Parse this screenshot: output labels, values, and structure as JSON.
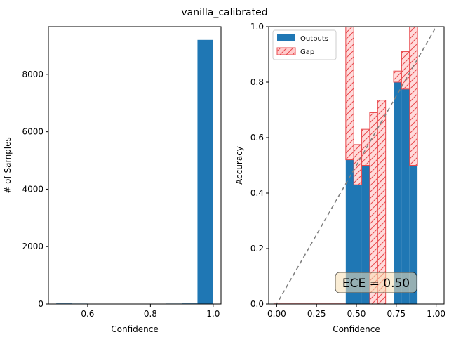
{
  "figure": {
    "suptitle": "vanilla_calibrated"
  },
  "chart_data": [
    {
      "type": "bar",
      "name": "confidence-histogram",
      "xlabel": "Confidence",
      "ylabel": "# of Samples",
      "xlim": [
        0.475,
        1.025
      ],
      "ylim": [
        0,
        9660
      ],
      "xticks": [
        0.6,
        0.8,
        1.0
      ],
      "xtick_labels": [
        "0.6",
        "0.8",
        "1.0"
      ],
      "yticks": [
        0,
        2000,
        4000,
        6000,
        8000
      ],
      "ytick_labels": [
        "0",
        "2000",
        "4000",
        "6000",
        "8000"
      ],
      "bar_color": "#1f77b4",
      "bins": [
        {
          "x0": 0.5,
          "x1": 0.55,
          "count": 20
        },
        {
          "x0": 0.55,
          "x1": 0.6,
          "count": 15
        },
        {
          "x0": 0.6,
          "x1": 0.65,
          "count": 12
        },
        {
          "x0": 0.65,
          "x1": 0.7,
          "count": 10
        },
        {
          "x0": 0.7,
          "x1": 0.75,
          "count": 8
        },
        {
          "x0": 0.75,
          "x1": 0.8,
          "count": 10
        },
        {
          "x0": 0.8,
          "x1": 0.85,
          "count": 12
        },
        {
          "x0": 0.85,
          "x1": 0.9,
          "count": 15
        },
        {
          "x0": 0.9,
          "x1": 0.95,
          "count": 20
        },
        {
          "x0": 0.95,
          "x1": 1.0,
          "count": 9200
        }
      ],
      "grid": false
    },
    {
      "type": "bar",
      "name": "reliability-diagram",
      "xlabel": "Confidence",
      "ylabel": "Accuracy",
      "xlim": [
        -0.05,
        1.05
      ],
      "ylim": [
        0,
        1
      ],
      "xticks": [
        0.0,
        0.25,
        0.5,
        0.75,
        1.0
      ],
      "xtick_labels": [
        "0.00",
        "0.25",
        "0.50",
        "0.75",
        "1.00"
      ],
      "yticks": [
        0.0,
        0.2,
        0.4,
        0.6,
        0.8,
        1.0
      ],
      "ytick_labels": [
        "0.0",
        "0.2",
        "0.4",
        "0.6",
        "0.8",
        "1.0"
      ],
      "bin_edges": [
        0.4333,
        0.4833,
        0.5333,
        0.5833,
        0.6333,
        0.6833,
        0.7333,
        0.7833,
        0.8333,
        0.8833,
        0.9333,
        0.9833
      ],
      "outputs": [
        0.52,
        0.43,
        0.5,
        0.0,
        0.0,
        0.0,
        0.8,
        0.775,
        0.5,
        0.0,
        0.0
      ],
      "expected": [
        1.0,
        0.575,
        0.63,
        0.69,
        0.735,
        0.0,
        0.84,
        0.91,
        1.0,
        0.0,
        0.0
      ],
      "gap_floor": [
        0.0,
        0.0,
        0.0,
        0.0,
        0.0,
        0.0,
        0.0,
        0.0,
        0.0,
        0.0,
        0.0
      ],
      "bottom_line": {
        "x0": -0.02,
        "x1": 0.44,
        "y": 0.0
      },
      "diagonal": {
        "x0": -0.03,
        "x1": 1.0
      },
      "legend": {
        "placement": "top-left",
        "entries": [
          "Outputs",
          "Gap"
        ]
      },
      "annotation": "ECE = 0.50",
      "colors": {
        "outputs": "#1f77b4",
        "gap_fill": "#ffcccc",
        "gap_edge": "#e8494d",
        "diagonal": "#808080",
        "annotation_bg": "#f5deb3"
      },
      "grid": false
    }
  ]
}
